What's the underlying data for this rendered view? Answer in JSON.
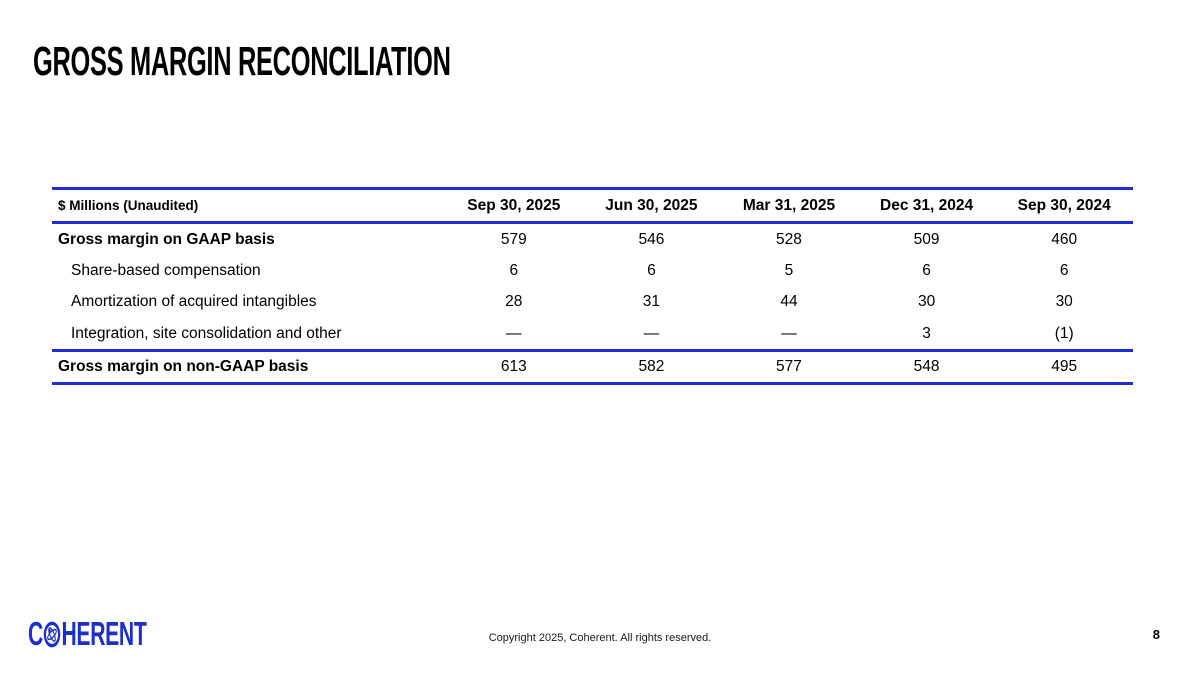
{
  "slide": {
    "title": "GROSS MARGIN RECONCILIATION",
    "copyright": "Copyright 2025, Coherent. All rights reserved.",
    "page_number": "8"
  },
  "logo": {
    "prefix": "C",
    "suffix": "HERENT",
    "icon": "coherent-atom-globe-icon",
    "color": "#1c2fc9"
  },
  "colors": {
    "accent_blue": "#1e2cd9",
    "text": "#000000",
    "background": "#ffffff"
  },
  "table": {
    "label_header": "$ Millions (Unaudited)",
    "columns": [
      "Sep 30, 2025",
      "Jun 30, 2025",
      "Mar 31, 2025",
      "Dec 31, 2024",
      "Sep 30, 2024"
    ],
    "rows": [
      {
        "label": "Gross margin on GAAP basis",
        "bold": true,
        "indent": false,
        "values": [
          "579",
          "546",
          "528",
          "509",
          "460"
        ]
      },
      {
        "label": "Share-based compensation",
        "bold": false,
        "indent": true,
        "values": [
          "6",
          "6",
          "5",
          "6",
          "6"
        ]
      },
      {
        "label": "Amortization of acquired intangibles",
        "bold": false,
        "indent": true,
        "values": [
          "28",
          "31",
          "44",
          "30",
          "30"
        ]
      },
      {
        "label": "Integration, site consolidation and other",
        "bold": false,
        "indent": true,
        "values": [
          "—",
          "—",
          "—",
          "3",
          "(1)"
        ]
      }
    ],
    "total_row": {
      "label": "Gross margin on non-GAAP basis",
      "values": [
        "613",
        "582",
        "577",
        "548",
        "495"
      ]
    }
  },
  "chart_data": {
    "type": "table",
    "title": "Gross Margin Reconciliation ($ Millions, Unaudited)",
    "categories": [
      "Sep 30, 2025",
      "Jun 30, 2025",
      "Mar 31, 2025",
      "Dec 31, 2024",
      "Sep 30, 2024"
    ],
    "series": [
      {
        "name": "Gross margin on GAAP basis",
        "values": [
          579,
          546,
          528,
          509,
          460
        ]
      },
      {
        "name": "Share-based compensation",
        "values": [
          6,
          6,
          5,
          6,
          6
        ]
      },
      {
        "name": "Amortization of acquired intangibles",
        "values": [
          28,
          31,
          44,
          30,
          30
        ]
      },
      {
        "name": "Integration, site consolidation and other",
        "values": [
          null,
          null,
          null,
          3,
          -1
        ]
      },
      {
        "name": "Gross margin on non-GAAP basis",
        "values": [
          613,
          582,
          577,
          548,
          495
        ]
      }
    ]
  }
}
